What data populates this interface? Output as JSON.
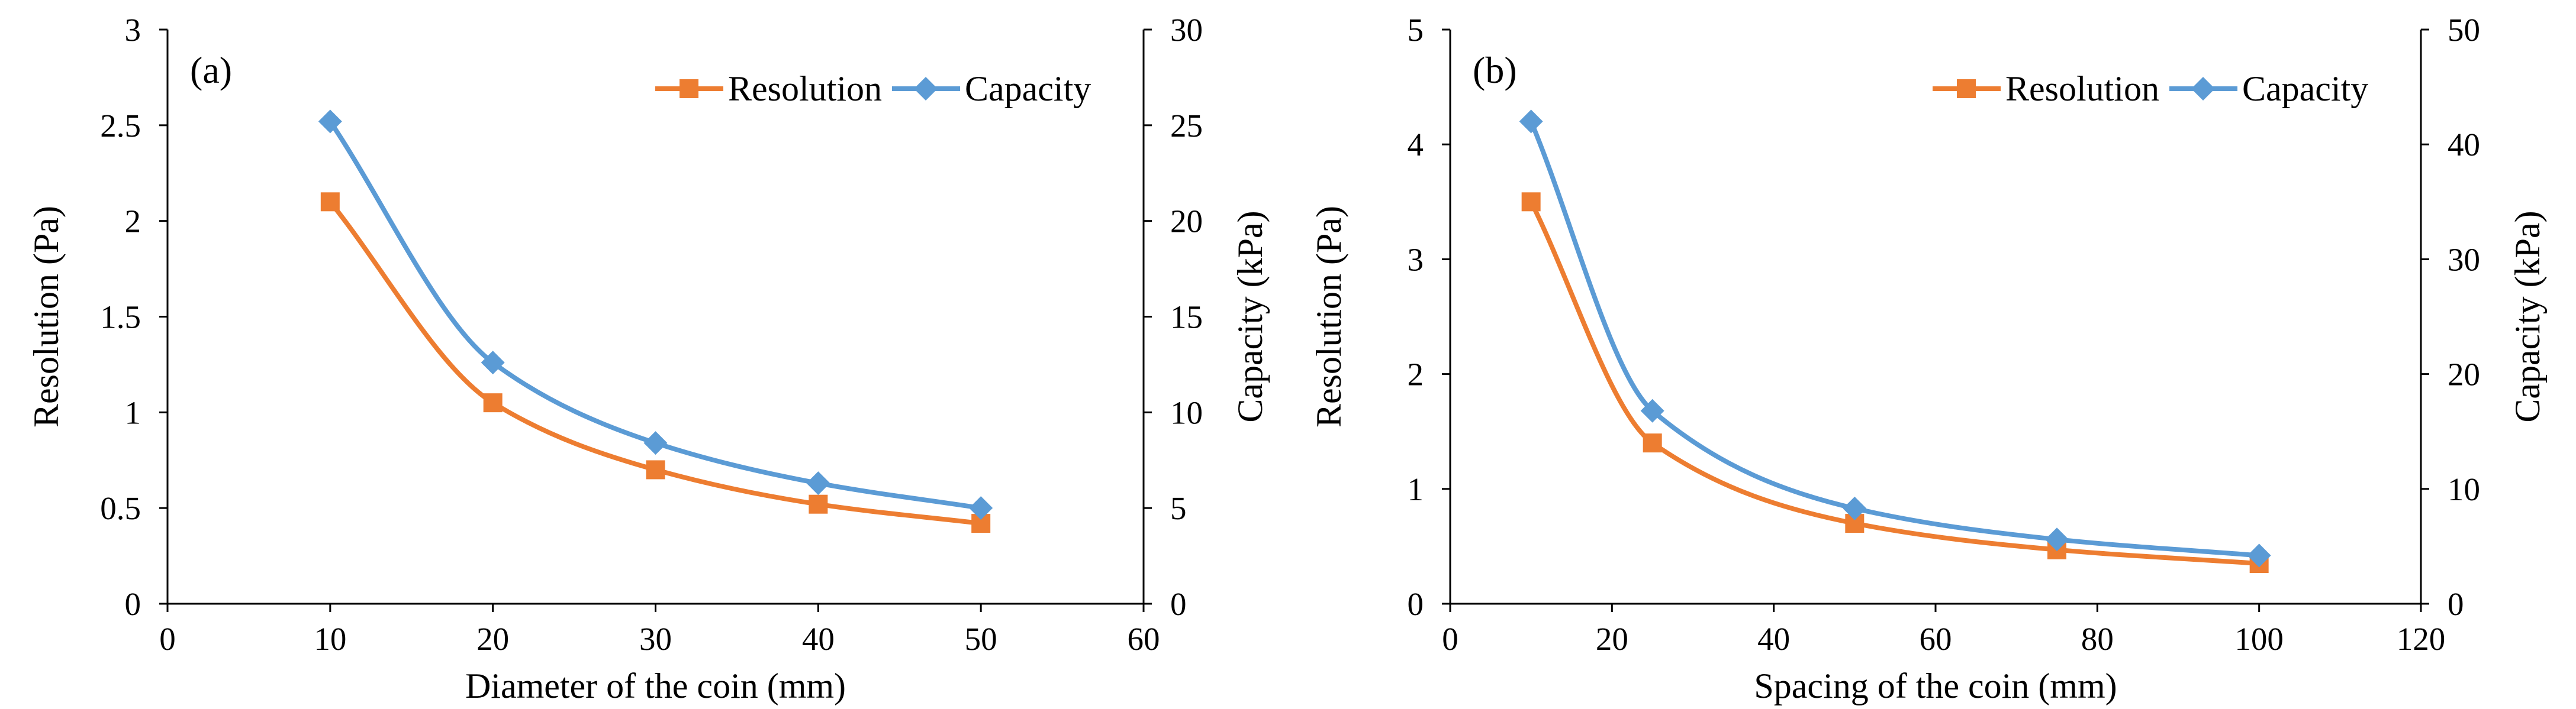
{
  "chart_data": [
    {
      "type": "line",
      "panel_label": "(a)",
      "xlabel": "Diameter of the coin (mm)",
      "ylabel": "Resolution (Pa)",
      "y2label": "Capacity (kPa)",
      "xlim": [
        0,
        60
      ],
      "ylim": [
        0,
        3
      ],
      "y2lim": [
        0,
        30
      ],
      "xticks": [
        0,
        10,
        20,
        30,
        40,
        50,
        60
      ],
      "yticks": [
        0,
        0.5,
        1,
        1.5,
        2,
        2.5,
        3
      ],
      "y2ticks": [
        0,
        5,
        10,
        15,
        20,
        25,
        30
      ],
      "grid": false,
      "legend_position": "top-right",
      "series": [
        {
          "name": "Resolution",
          "axis": "left",
          "color": "#ED7D31",
          "marker": "square",
          "x": [
            10,
            20,
            30,
            40,
            50
          ],
          "values": [
            2.1,
            1.05,
            0.7,
            0.52,
            0.42
          ]
        },
        {
          "name": "Capacity",
          "axis": "right",
          "color": "#5B9BD5",
          "marker": "diamond",
          "x": [
            10,
            20,
            30,
            40,
            50
          ],
          "values": [
            25.2,
            12.6,
            8.4,
            6.3,
            5.0
          ]
        }
      ]
    },
    {
      "type": "line",
      "panel_label": "(b)",
      "xlabel": "Spacing of the coin (mm)",
      "ylabel": "Resolution (Pa)",
      "y2label": "Capacity (kPa)",
      "xlim": [
        0,
        120
      ],
      "ylim": [
        0,
        5
      ],
      "y2lim": [
        0,
        50
      ],
      "xticks": [
        0,
        20,
        40,
        60,
        80,
        100,
        120
      ],
      "yticks": [
        0,
        1,
        2,
        3,
        4,
        5
      ],
      "y2ticks": [
        0,
        10,
        20,
        30,
        40,
        50
      ],
      "grid": false,
      "legend_position": "top-right",
      "series": [
        {
          "name": "Resolution",
          "axis": "left",
          "color": "#ED7D31",
          "marker": "square",
          "x": [
            10,
            25,
            50,
            75,
            100
          ],
          "values": [
            3.5,
            1.4,
            0.7,
            0.47,
            0.35
          ]
        },
        {
          "name": "Capacity",
          "axis": "right",
          "color": "#5B9BD5",
          "marker": "diamond",
          "x": [
            10,
            25,
            50,
            75,
            100
          ],
          "values": [
            42,
            16.8,
            8.3,
            5.6,
            4.2
          ]
        }
      ]
    }
  ]
}
